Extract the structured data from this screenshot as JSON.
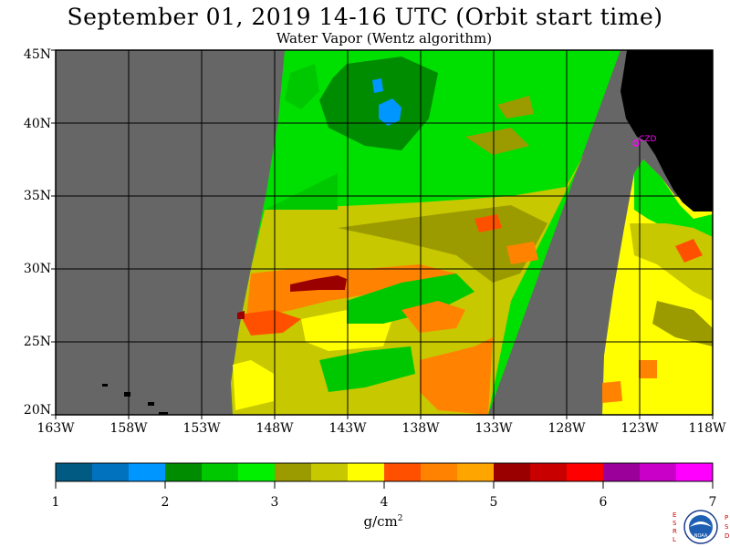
{
  "title": "September 01, 2019  14-16 UTC  (Orbit start time)",
  "subtitle": "Water Vapor (Wentz algorithm)",
  "map": {
    "lat_labels": [
      "45N",
      "40N",
      "35N",
      "30N",
      "25N",
      "20N"
    ],
    "lon_labels": [
      "163W",
      "158W",
      "153W",
      "148W",
      "143W",
      "138W",
      "133W",
      "128W",
      "123W",
      "118W"
    ],
    "station_label": "CZD",
    "colors": {
      "no_data": "#666666",
      "land": "#000000",
      "grid": "#000000",
      "station": "#ff00ff"
    }
  },
  "colorbar": {
    "tick_labels": [
      "1",
      "2",
      "3",
      "4",
      "5",
      "6",
      "7"
    ],
    "units_base": "g/cm",
    "units_exp": "2",
    "colors": [
      "#005a82",
      "#0072be",
      "#0096ff",
      "#008c00",
      "#00c800",
      "#00f000",
      "#9b9b00",
      "#c8c800",
      "#ffff00",
      "#ff5000",
      "#ff8200",
      "#ffa500",
      "#9b0000",
      "#c80000",
      "#ff0000",
      "#9b009b",
      "#c800c8",
      "#ff00ff"
    ]
  },
  "logo": {
    "left_letters": "ESRL",
    "right_letters": "PSD",
    "center_text": "NOAA"
  }
}
